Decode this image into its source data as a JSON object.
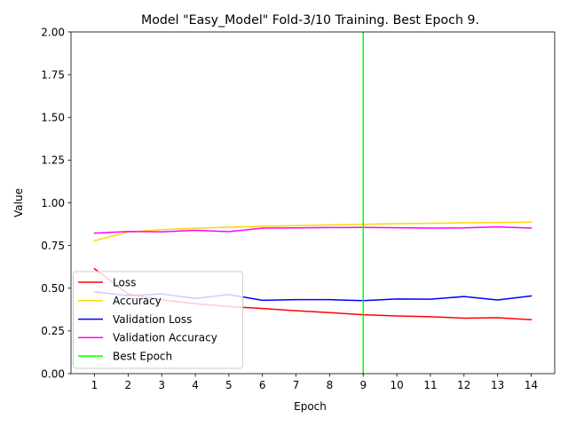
{
  "chart_data": {
    "type": "line",
    "title": "Model \"Easy_Model\" Fold-3/10 Training. Best Epoch 9.",
    "xlabel": "Epoch",
    "ylabel": "Value",
    "x": [
      1,
      2,
      3,
      4,
      5,
      6,
      7,
      8,
      9,
      10,
      11,
      12,
      13,
      14
    ],
    "xticks": [
      "1",
      "2",
      "3",
      "4",
      "5",
      "6",
      "7",
      "8",
      "9",
      "10",
      "11",
      "12",
      "13",
      "14"
    ],
    "xlim": [
      0.3,
      14.7
    ],
    "ylim": [
      0,
      2.0
    ],
    "yticks": [
      "0.00",
      "0.25",
      "0.50",
      "0.75",
      "1.00",
      "1.25",
      "1.50",
      "1.75",
      "2.00"
    ],
    "grid": false,
    "legend_position": "lower-left",
    "series": [
      {
        "name": "Loss",
        "color": "#ff0000",
        "values": [
          0.614,
          0.466,
          0.432,
          0.409,
          0.393,
          0.381,
          0.368,
          0.357,
          0.345,
          0.338,
          0.333,
          0.325,
          0.327,
          0.316
        ]
      },
      {
        "name": "Accuracy",
        "color": "#ffd700",
        "values": [
          0.778,
          0.829,
          0.843,
          0.851,
          0.857,
          0.862,
          0.866,
          0.87,
          0.874,
          0.878,
          0.88,
          0.883,
          0.884,
          0.887
        ]
      },
      {
        "name": "Validation Loss",
        "color": "#0000ff",
        "values": [
          0.479,
          0.457,
          0.466,
          0.44,
          0.463,
          0.429,
          0.433,
          0.433,
          0.427,
          0.437,
          0.436,
          0.451,
          0.431,
          0.455
        ]
      },
      {
        "name": "Validation  Accuracy",
        "color": "#ff00ff",
        "values": [
          0.822,
          0.832,
          0.83,
          0.839,
          0.831,
          0.852,
          0.853,
          0.855,
          0.856,
          0.854,
          0.852,
          0.853,
          0.859,
          0.852
        ]
      }
    ],
    "best_epoch": {
      "name": "Best Epoch",
      "x": 9,
      "color": "#00ff00"
    }
  }
}
